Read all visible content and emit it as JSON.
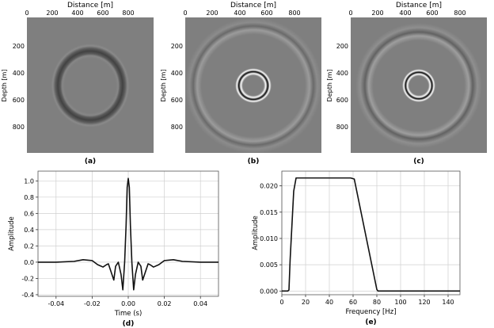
{
  "figure": {
    "panels": [
      {
        "label": "(a)",
        "xlabel": "Distance [m]",
        "ylabel": "Depth [m]",
        "xticks": [
          "0",
          "200",
          "400",
          "600",
          "800"
        ],
        "yticks": [
          "200",
          "400",
          "600",
          "800"
        ]
      },
      {
        "label": "(b)",
        "xlabel": "Distance [m]",
        "ylabel": "Depth [m]",
        "xticks": [
          "0",
          "200",
          "400",
          "600",
          "800"
        ],
        "yticks": [
          "200",
          "400",
          "600",
          "800"
        ]
      },
      {
        "label": "(c)",
        "xlabel": "Distance [m]",
        "ylabel": "Depth [m]",
        "xticks": [
          "0",
          "200",
          "400",
          "600",
          "800"
        ],
        "yticks": [
          "200",
          "400",
          "600",
          "800"
        ]
      }
    ]
  },
  "chart_data": [
    {
      "type": "heatmap",
      "label": "(a)",
      "xlabel": "Distance [m]",
      "ylabel": "Depth [m]",
      "xlim": [
        0,
        1000
      ],
      "ylim": [
        0,
        1000
      ],
      "y_inverted": true,
      "rings": [
        {
          "center": [
            500,
            500
          ],
          "radius": 230,
          "polarity": "dark",
          "strength": 0.55
        }
      ],
      "background": "#7f7f7f"
    },
    {
      "type": "heatmap",
      "label": "(b)",
      "xlabel": "Distance [m]",
      "ylabel": "Depth [m]",
      "xlim": [
        0,
        1000
      ],
      "ylim": [
        0,
        1000
      ],
      "y_inverted": true,
      "rings": [
        {
          "center": [
            500,
            500
          ],
          "radius": 85,
          "polarity": "strong",
          "strength": 1.0
        },
        {
          "center": [
            500,
            500
          ],
          "radius": 400,
          "polarity": "soft",
          "strength": 0.3
        }
      ],
      "background": "#7f7f7f"
    },
    {
      "type": "heatmap",
      "label": "(c)",
      "xlabel": "Distance [m]",
      "ylabel": "Depth [m]",
      "xlim": [
        0,
        1000
      ],
      "ylim": [
        0,
        1000
      ],
      "y_inverted": true,
      "rings": [
        {
          "center": [
            500,
            500
          ],
          "radius": 85,
          "polarity": "strong",
          "strength": 1.0
        },
        {
          "center": [
            500,
            500
          ],
          "radius": 365,
          "polarity": "soft",
          "strength": 0.35
        }
      ],
      "background": "#7f7f7f"
    },
    {
      "type": "line",
      "label": "(d)",
      "xlabel": "Time (s)",
      "ylabel": "Amplitude",
      "xlim": [
        -0.05,
        0.05
      ],
      "ylim": [
        -0.42,
        1.12
      ],
      "xticks": [
        "-0.04",
        "-0.02",
        "0.00",
        "0.02",
        "0.04"
      ],
      "yticks": [
        "-0.4",
        "-0.2",
        "0.0",
        "0.2",
        "0.4",
        "0.6",
        "0.8",
        "1.0"
      ],
      "ytick_values": [
        -0.4,
        -0.2,
        0.0,
        0.2,
        0.4,
        0.6,
        0.8,
        1.0
      ],
      "xtick_values": [
        -0.04,
        -0.02,
        0.0,
        0.02,
        0.04
      ],
      "grid": true,
      "series": [
        {
          "x": [
            -0.05,
            -0.04,
            -0.03,
            -0.025,
            -0.02,
            -0.017,
            -0.014,
            -0.012,
            -0.011,
            -0.0095,
            -0.008,
            -0.007,
            -0.0055,
            -0.004,
            -0.003,
            -0.002,
            -0.0012,
            -0.0006,
            0.0,
            0.0006,
            0.0012,
            0.002,
            0.003,
            0.004,
            0.0055,
            0.007,
            0.008,
            0.0095,
            0.011,
            0.012,
            0.014,
            0.017,
            0.02,
            0.025,
            0.03,
            0.04,
            0.05
          ],
          "y": [
            0.0,
            0.0,
            0.01,
            0.03,
            0.02,
            -0.03,
            -0.06,
            -0.03,
            -0.02,
            -0.12,
            -0.22,
            -0.05,
            0.0,
            -0.15,
            -0.34,
            0.0,
            0.45,
            0.92,
            1.03,
            0.92,
            0.45,
            0.0,
            -0.34,
            -0.15,
            0.0,
            -0.05,
            -0.22,
            -0.12,
            -0.02,
            -0.03,
            -0.06,
            -0.03,
            0.02,
            0.03,
            0.01,
            0.0,
            0.0
          ]
        }
      ],
      "color": "#111111"
    },
    {
      "type": "line",
      "label": "(e)",
      "xlabel": "Frequency [Hz]",
      "ylabel": "Amplitude",
      "xlim": [
        0,
        150
      ],
      "ylim": [
        -0.0007,
        0.0228
      ],
      "xticks": [
        "0",
        "20",
        "40",
        "60",
        "80",
        "100",
        "120",
        "140"
      ],
      "xtick_values": [
        0,
        20,
        40,
        60,
        80,
        100,
        120,
        140
      ],
      "yticks": [
        "0.000",
        "0.005",
        "0.010",
        "0.015",
        "0.020"
      ],
      "ytick_values": [
        0.0,
        0.005,
        0.01,
        0.015,
        0.02
      ],
      "grid": true,
      "series": [
        {
          "x": [
            0,
            5,
            6,
            7,
            10,
            12,
            58,
            61,
            80,
            81,
            150
          ],
          "y": [
            0.0,
            0.0,
            0.0002,
            0.006,
            0.019,
            0.0215,
            0.0215,
            0.0213,
            0.0003,
            0.0,
            0.0
          ]
        }
      ],
      "color": "#111111"
    }
  ]
}
